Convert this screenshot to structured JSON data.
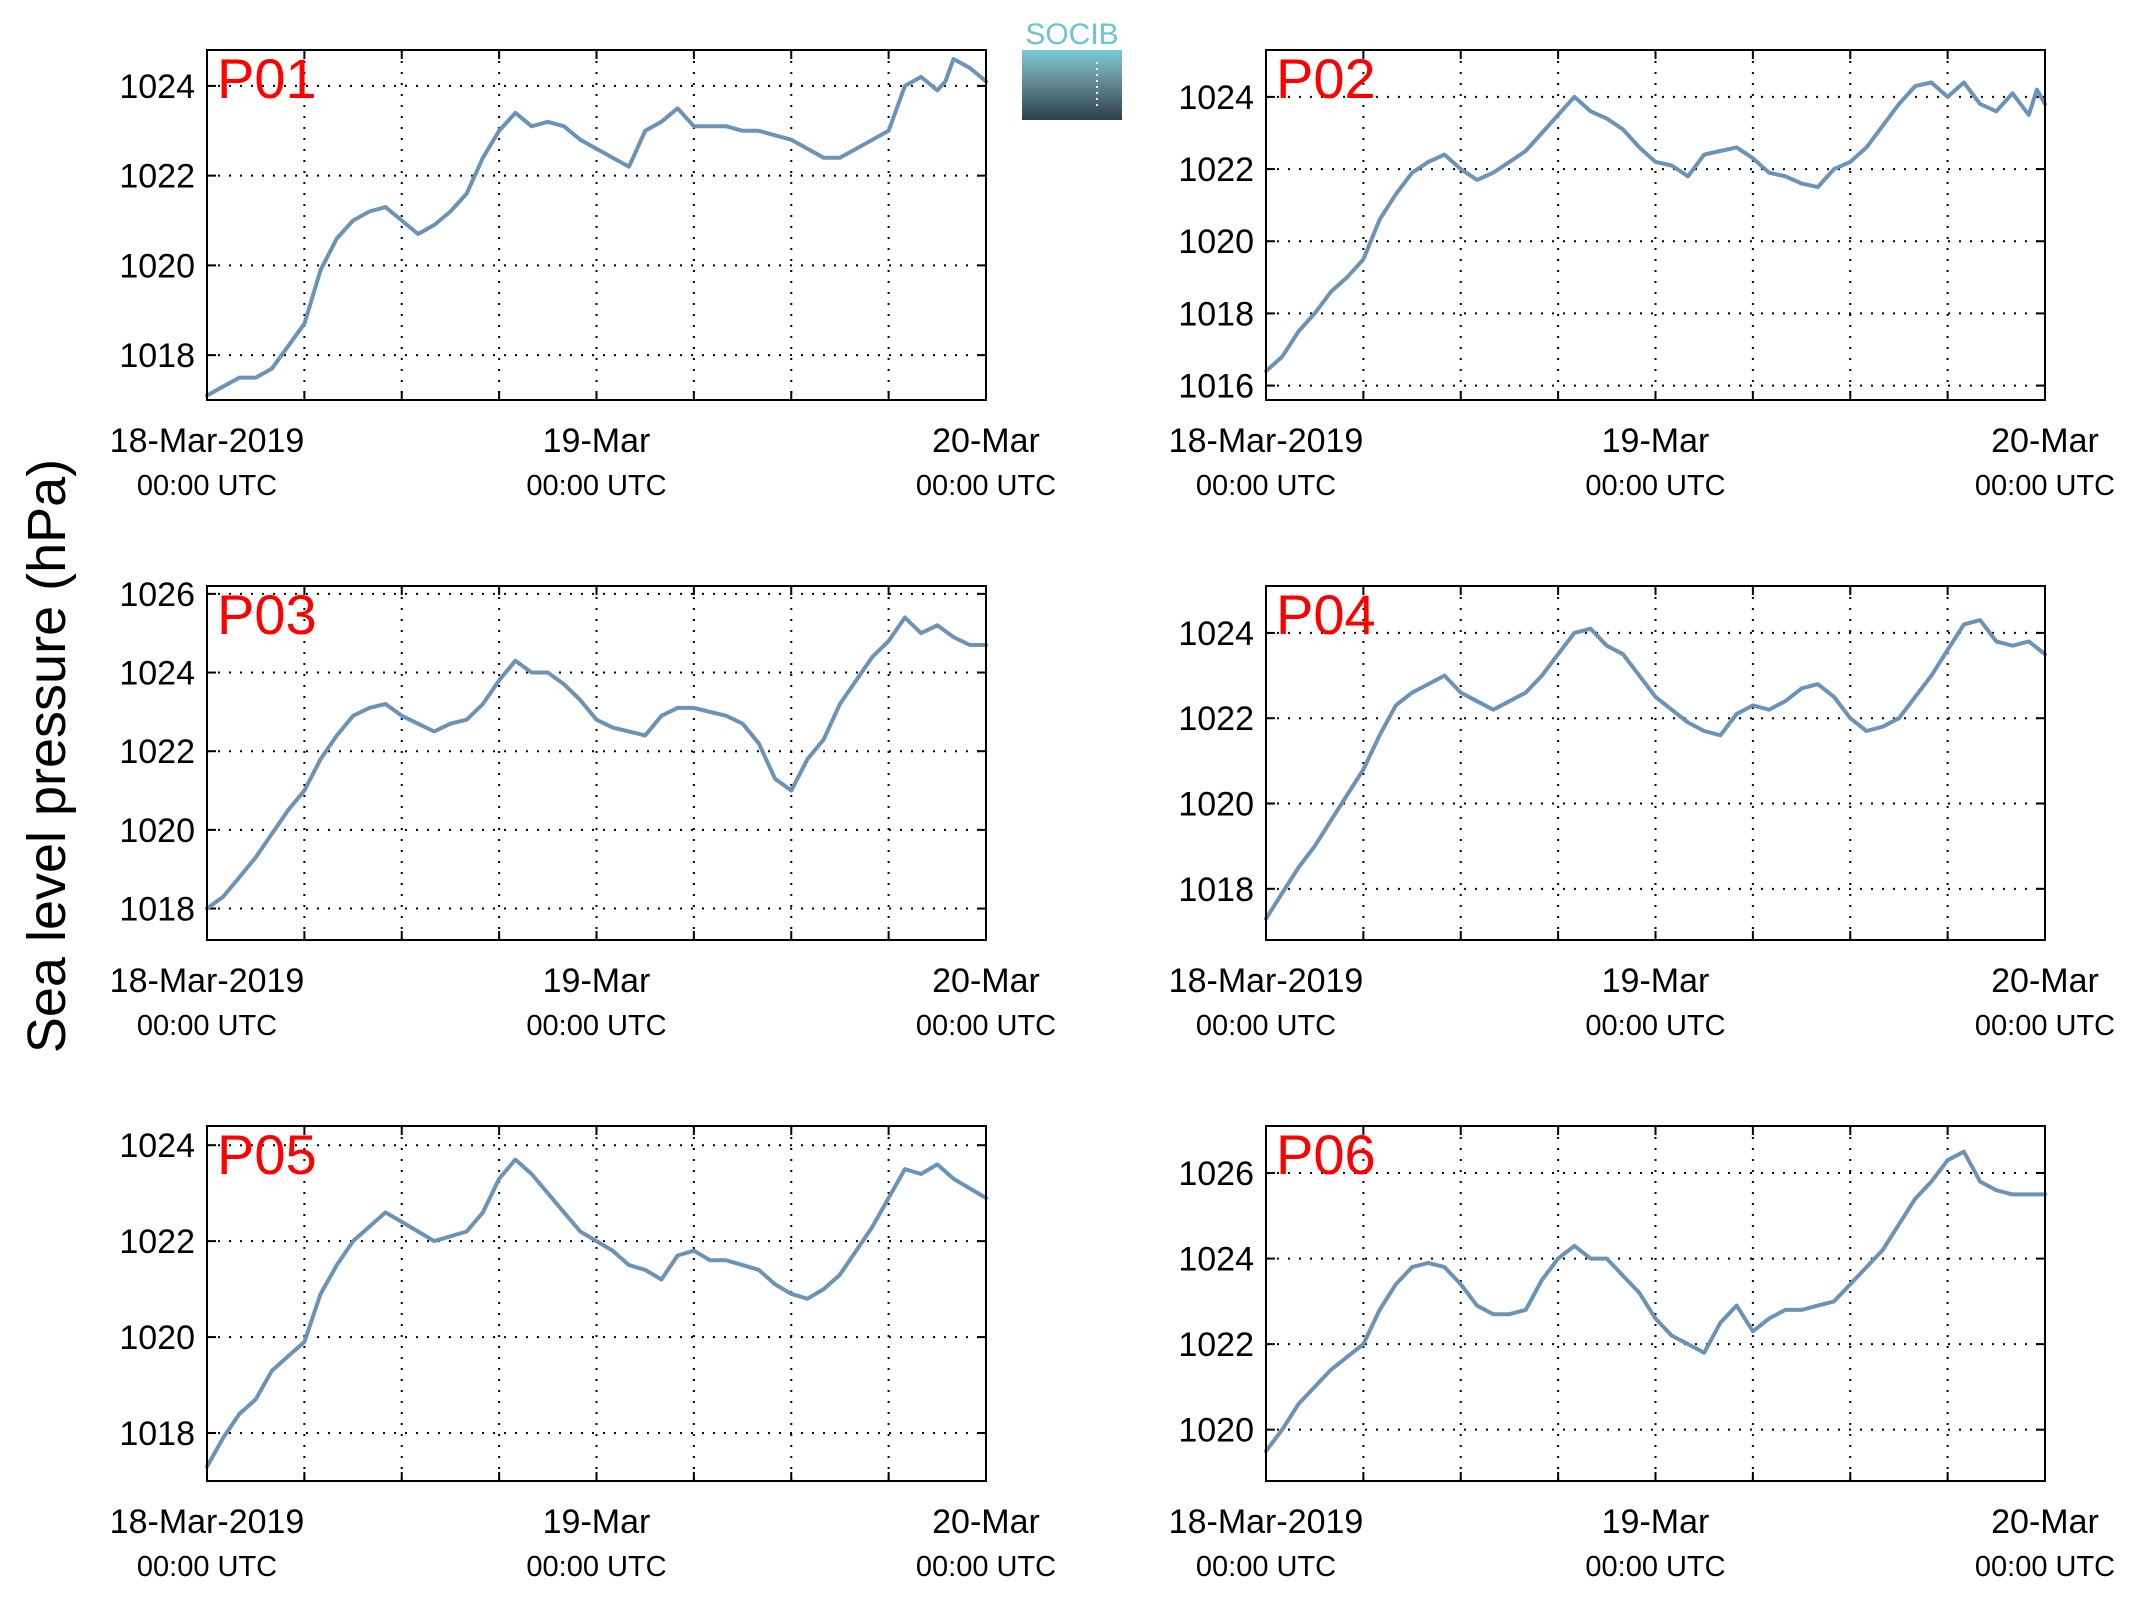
{
  "figure": {
    "ylabel": "Sea level pressure (hPa)",
    "logo_text": "SOCIB",
    "line_color": "#6a93b7",
    "panel_label_color": "#ff0000",
    "x_ticks": [
      {
        "x": 0,
        "line1": "18-Mar-2019",
        "line2": "00:00 UTC"
      },
      {
        "x": 24,
        "line1": "19-Mar",
        "line2": "00:00 UTC"
      },
      {
        "x": 48,
        "line1": "20-Mar",
        "line2": "00:00 UTC"
      }
    ],
    "x_grid_hours": [
      6,
      12,
      18,
      24,
      30,
      36,
      42
    ],
    "xlim": [
      0,
      48
    ]
  },
  "chart_data": [
    {
      "type": "line",
      "panel": "P01",
      "ylim": [
        1017.0,
        1024.8
      ],
      "yticks": [
        1018,
        1020,
        1022,
        1024
      ],
      "x": [
        0,
        1,
        2,
        3,
        4,
        5,
        6,
        7,
        8,
        9,
        10,
        11,
        12,
        13,
        14,
        15,
        16,
        17,
        18,
        19,
        20,
        21,
        22,
        23,
        24,
        25,
        26,
        27,
        28,
        29,
        30,
        31,
        32,
        33,
        34,
        35,
        36,
        37,
        38,
        39,
        40,
        41,
        42,
        43,
        44,
        45,
        45.5,
        46,
        47,
        48
      ],
      "y": [
        1017.1,
        1017.3,
        1017.5,
        1017.5,
        1017.7,
        1018.2,
        1018.7,
        1019.9,
        1020.6,
        1021.0,
        1021.2,
        1021.3,
        1021.0,
        1020.7,
        1020.9,
        1021.2,
        1021.6,
        1022.4,
        1023.0,
        1023.4,
        1023.1,
        1023.2,
        1023.1,
        1022.8,
        1022.6,
        1022.4,
        1022.2,
        1023.0,
        1023.2,
        1023.5,
        1023.1,
        1023.1,
        1023.1,
        1023.0,
        1023.0,
        1022.9,
        1022.8,
        1022.6,
        1022.4,
        1022.4,
        1022.6,
        1022.8,
        1023.0,
        1024.0,
        1024.2,
        1023.9,
        1024.1,
        1024.6,
        1024.4,
        1024.1
      ]
    },
    {
      "type": "line",
      "panel": "P02",
      "ylim": [
        1015.6,
        1025.3
      ],
      "yticks": [
        1016,
        1018,
        1020,
        1022,
        1024
      ],
      "x": [
        0,
        1,
        2,
        3,
        4,
        5,
        6,
        7,
        8,
        9,
        10,
        11,
        12,
        13,
        14,
        15,
        16,
        17,
        18,
        19,
        20,
        21,
        22,
        23,
        24,
        25,
        26,
        27,
        28,
        29,
        30,
        31,
        32,
        33,
        34,
        35,
        36,
        37,
        38,
        39,
        40,
        41,
        42,
        43,
        44,
        45,
        46,
        47,
        47.5,
        48
      ],
      "y": [
        1016.4,
        1016.8,
        1017.5,
        1018.0,
        1018.6,
        1019.0,
        1019.5,
        1020.6,
        1021.3,
        1021.9,
        1022.2,
        1022.4,
        1022.0,
        1021.7,
        1021.9,
        1022.2,
        1022.5,
        1023.0,
        1023.5,
        1024.0,
        1023.6,
        1023.4,
        1023.1,
        1022.6,
        1022.2,
        1022.1,
        1021.8,
        1022.4,
        1022.5,
        1022.6,
        1022.3,
        1021.9,
        1021.8,
        1021.6,
        1021.5,
        1022.0,
        1022.2,
        1022.6,
        1023.2,
        1023.8,
        1024.3,
        1024.4,
        1024.0,
        1024.4,
        1023.8,
        1023.6,
        1024.1,
        1023.5,
        1024.2,
        1023.8
      ]
    },
    {
      "type": "line",
      "panel": "P03",
      "ylim": [
        1017.2,
        1026.2
      ],
      "yticks": [
        1018,
        1020,
        1022,
        1024,
        1026
      ],
      "x": [
        0,
        1,
        2,
        3,
        4,
        5,
        6,
        7,
        8,
        9,
        10,
        11,
        12,
        13,
        14,
        15,
        16,
        17,
        18,
        19,
        20,
        21,
        22,
        23,
        24,
        25,
        26,
        27,
        28,
        29,
        30,
        31,
        32,
        33,
        34,
        35,
        36,
        37,
        38,
        39,
        40,
        41,
        42,
        43,
        44,
        45,
        46,
        47,
        48
      ],
      "y": [
        1018.0,
        1018.3,
        1018.8,
        1019.3,
        1019.9,
        1020.5,
        1021.0,
        1021.8,
        1022.4,
        1022.9,
        1023.1,
        1023.2,
        1022.9,
        1022.7,
        1022.5,
        1022.7,
        1022.8,
        1023.2,
        1023.8,
        1024.3,
        1024.0,
        1024.0,
        1023.7,
        1023.3,
        1022.8,
        1022.6,
        1022.5,
        1022.4,
        1022.9,
        1023.1,
        1023.1,
        1023.0,
        1022.9,
        1022.7,
        1022.2,
        1021.3,
        1021.0,
        1021.8,
        1022.3,
        1023.2,
        1023.8,
        1024.4,
        1024.8,
        1025.4,
        1025.0,
        1025.2,
        1024.9,
        1024.7,
        1024.7
      ]
    },
    {
      "type": "line",
      "panel": "P04",
      "ylim": [
        1016.8,
        1025.1
      ],
      "yticks": [
        1018,
        1020,
        1022,
        1024
      ],
      "x": [
        0,
        1,
        2,
        3,
        4,
        5,
        6,
        7,
        8,
        9,
        10,
        11,
        12,
        13,
        14,
        15,
        16,
        17,
        18,
        19,
        20,
        21,
        22,
        23,
        24,
        25,
        26,
        27,
        28,
        29,
        30,
        31,
        32,
        33,
        34,
        35,
        36,
        37,
        38,
        39,
        40,
        41,
        42,
        43,
        44,
        45,
        46,
        47,
        48
      ],
      "y": [
        1017.3,
        1017.9,
        1018.5,
        1019.0,
        1019.6,
        1020.2,
        1020.8,
        1021.6,
        1022.3,
        1022.6,
        1022.8,
        1023.0,
        1022.6,
        1022.4,
        1022.2,
        1022.4,
        1022.6,
        1023.0,
        1023.5,
        1024.0,
        1024.1,
        1023.7,
        1023.5,
        1023.0,
        1022.5,
        1022.2,
        1021.9,
        1021.7,
        1021.6,
        1022.1,
        1022.3,
        1022.2,
        1022.4,
        1022.7,
        1022.8,
        1022.5,
        1022.0,
        1021.7,
        1021.8,
        1022.0,
        1022.5,
        1023.0,
        1023.6,
        1024.2,
        1024.3,
        1023.8,
        1023.7,
        1023.8,
        1023.5
      ]
    },
    {
      "type": "line",
      "panel": "P05",
      "ylim": [
        1017.0,
        1024.4
      ],
      "yticks": [
        1018,
        1020,
        1022,
        1024
      ],
      "x": [
        0,
        1,
        2,
        3,
        4,
        5,
        6,
        7,
        8,
        9,
        10,
        11,
        12,
        13,
        14,
        15,
        16,
        17,
        18,
        19,
        20,
        21,
        22,
        23,
        24,
        25,
        26,
        27,
        28,
        29,
        30,
        31,
        32,
        33,
        34,
        35,
        36,
        37,
        38,
        39,
        40,
        41,
        42,
        43,
        44,
        45,
        46,
        47,
        48
      ],
      "y": [
        1017.3,
        1017.9,
        1018.4,
        1018.7,
        1019.3,
        1019.6,
        1019.9,
        1020.9,
        1021.5,
        1022.0,
        1022.3,
        1022.6,
        1022.4,
        1022.2,
        1022.0,
        1022.1,
        1022.2,
        1022.6,
        1023.3,
        1023.7,
        1023.4,
        1023.0,
        1022.6,
        1022.2,
        1022.0,
        1021.8,
        1021.5,
        1021.4,
        1021.2,
        1021.7,
        1021.8,
        1021.6,
        1021.6,
        1021.5,
        1021.4,
        1021.1,
        1020.9,
        1020.8,
        1021.0,
        1021.3,
        1021.8,
        1022.3,
        1022.9,
        1023.5,
        1023.4,
        1023.6,
        1023.3,
        1023.1,
        1022.9
      ]
    },
    {
      "type": "line",
      "panel": "P06",
      "ylim": [
        1018.8,
        1027.1
      ],
      "yticks": [
        1020,
        1022,
        1024,
        1026
      ],
      "x": [
        0,
        1,
        2,
        3,
        4,
        5,
        6,
        7,
        8,
        9,
        10,
        11,
        12,
        13,
        14,
        15,
        16,
        17,
        18,
        19,
        20,
        21,
        22,
        23,
        24,
        25,
        26,
        27,
        28,
        29,
        30,
        31,
        32,
        33,
        34,
        35,
        36,
        37,
        38,
        39,
        40,
        41,
        42,
        43,
        44,
        45,
        46,
        47,
        48
      ],
      "y": [
        1019.5,
        1020.0,
        1020.6,
        1021.0,
        1021.4,
        1021.7,
        1022.0,
        1022.8,
        1023.4,
        1023.8,
        1023.9,
        1023.8,
        1023.4,
        1022.9,
        1022.7,
        1022.7,
        1022.8,
        1023.5,
        1024.0,
        1024.3,
        1024.0,
        1024.0,
        1023.6,
        1023.2,
        1022.6,
        1022.2,
        1022.0,
        1021.8,
        1022.5,
        1022.9,
        1022.3,
        1022.6,
        1022.8,
        1022.8,
        1022.9,
        1023.0,
        1023.4,
        1023.8,
        1024.2,
        1024.8,
        1025.4,
        1025.8,
        1026.3,
        1026.5,
        1025.8,
        1025.6,
        1025.5,
        1025.5,
        1025.5
      ]
    }
  ]
}
